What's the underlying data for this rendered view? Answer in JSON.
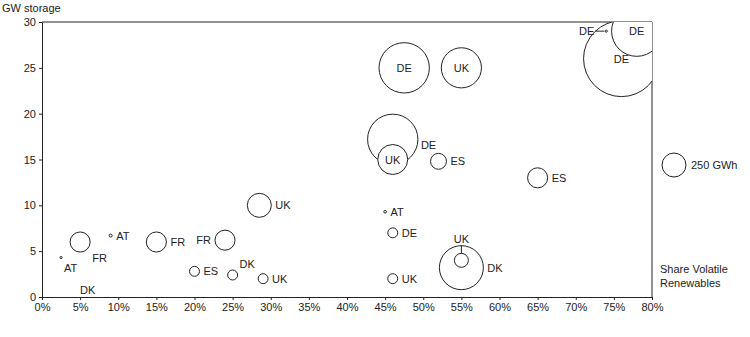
{
  "chart_data": {
    "type": "bubble",
    "y_label": "GW storage",
    "x_label": "Share Volatile Renewables",
    "x": [
      76,
      78,
      74,
      47.5,
      55,
      46,
      46,
      52,
      65,
      28.5,
      45,
      46,
      55,
      55,
      46,
      5,
      9,
      2.5,
      6,
      15,
      24,
      20,
      25,
      29
    ],
    "values": [
      26,
      29,
      29,
      25,
      25,
      17.2,
      15,
      14.8,
      13,
      10,
      9.3,
      7,
      3.2,
      4,
      2,
      6,
      6.7,
      4.3,
      0.8,
      6,
      6.2,
      2.8,
      2.4,
      2
    ],
    "sizes": [
      2500,
      1100,
      2,
      1100,
      700,
      1100,
      390,
      110,
      175,
      250,
      3,
      43,
      840,
      85,
      43,
      175,
      4,
      2,
      0,
      175,
      175,
      43,
      43,
      43
    ],
    "point_labels": [
      "DE",
      "DE",
      "DE",
      "DE",
      "UK",
      "DE",
      "UK",
      "ES",
      "ES",
      "UK",
      "AT",
      "DE",
      "DK",
      "UK",
      "UK",
      "FR",
      "AT",
      "AT",
      "DK",
      "FR",
      "FR",
      "ES",
      "DK",
      "UK"
    ],
    "size_legend": {
      "value": 250,
      "label": "250 GWh"
    },
    "xlim": [
      0,
      80
    ],
    "xticks": [
      {
        "value": 0,
        "label": "0%"
      },
      {
        "value": 5,
        "label": "5%"
      },
      {
        "value": 10,
        "label": "10%"
      },
      {
        "value": 15,
        "label": "15%"
      },
      {
        "value": 20,
        "label": "20%"
      },
      {
        "value": 25,
        "label": "25%"
      },
      {
        "value": 30,
        "label": "30%"
      },
      {
        "value": 35,
        "label": "35%"
      },
      {
        "value": 40,
        "label": "40%"
      },
      {
        "value": 45,
        "label": "45%"
      },
      {
        "value": 50,
        "label": "50%"
      },
      {
        "value": 55,
        "label": "55%"
      },
      {
        "value": 60,
        "label": "60%"
      },
      {
        "value": 65,
        "label": "65%"
      },
      {
        "value": 70,
        "label": "70%"
      },
      {
        "value": 75,
        "label": "75%"
      },
      {
        "value": 80,
        "label": "80%"
      }
    ],
    "ylim": [
      0,
      30
    ],
    "yticks": [
      0,
      5,
      10,
      15,
      20,
      25,
      30
    ],
    "grid": false
  }
}
